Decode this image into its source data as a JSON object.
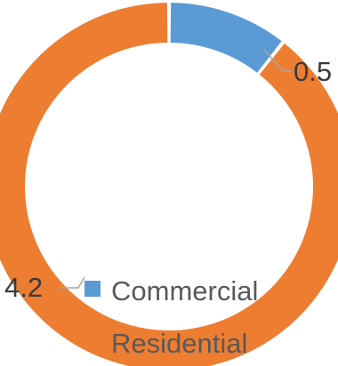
{
  "chart_data": {
    "type": "pie",
    "variant": "doughnut",
    "categories": [
      "Commercial",
      "Residential"
    ],
    "values": [
      0.5,
      4.2
    ],
    "colors": [
      "#5b9bd5",
      "#ed7d31"
    ],
    "data_labels": [
      "0.5",
      "4.2"
    ],
    "legend": {
      "position": "bottom",
      "items": [
        {
          "label": "Commercial",
          "color": "#5b9bd5"
        },
        {
          "label": "Residential",
          "color": "#ed7d31"
        }
      ]
    },
    "title": "",
    "grid": false
  }
}
